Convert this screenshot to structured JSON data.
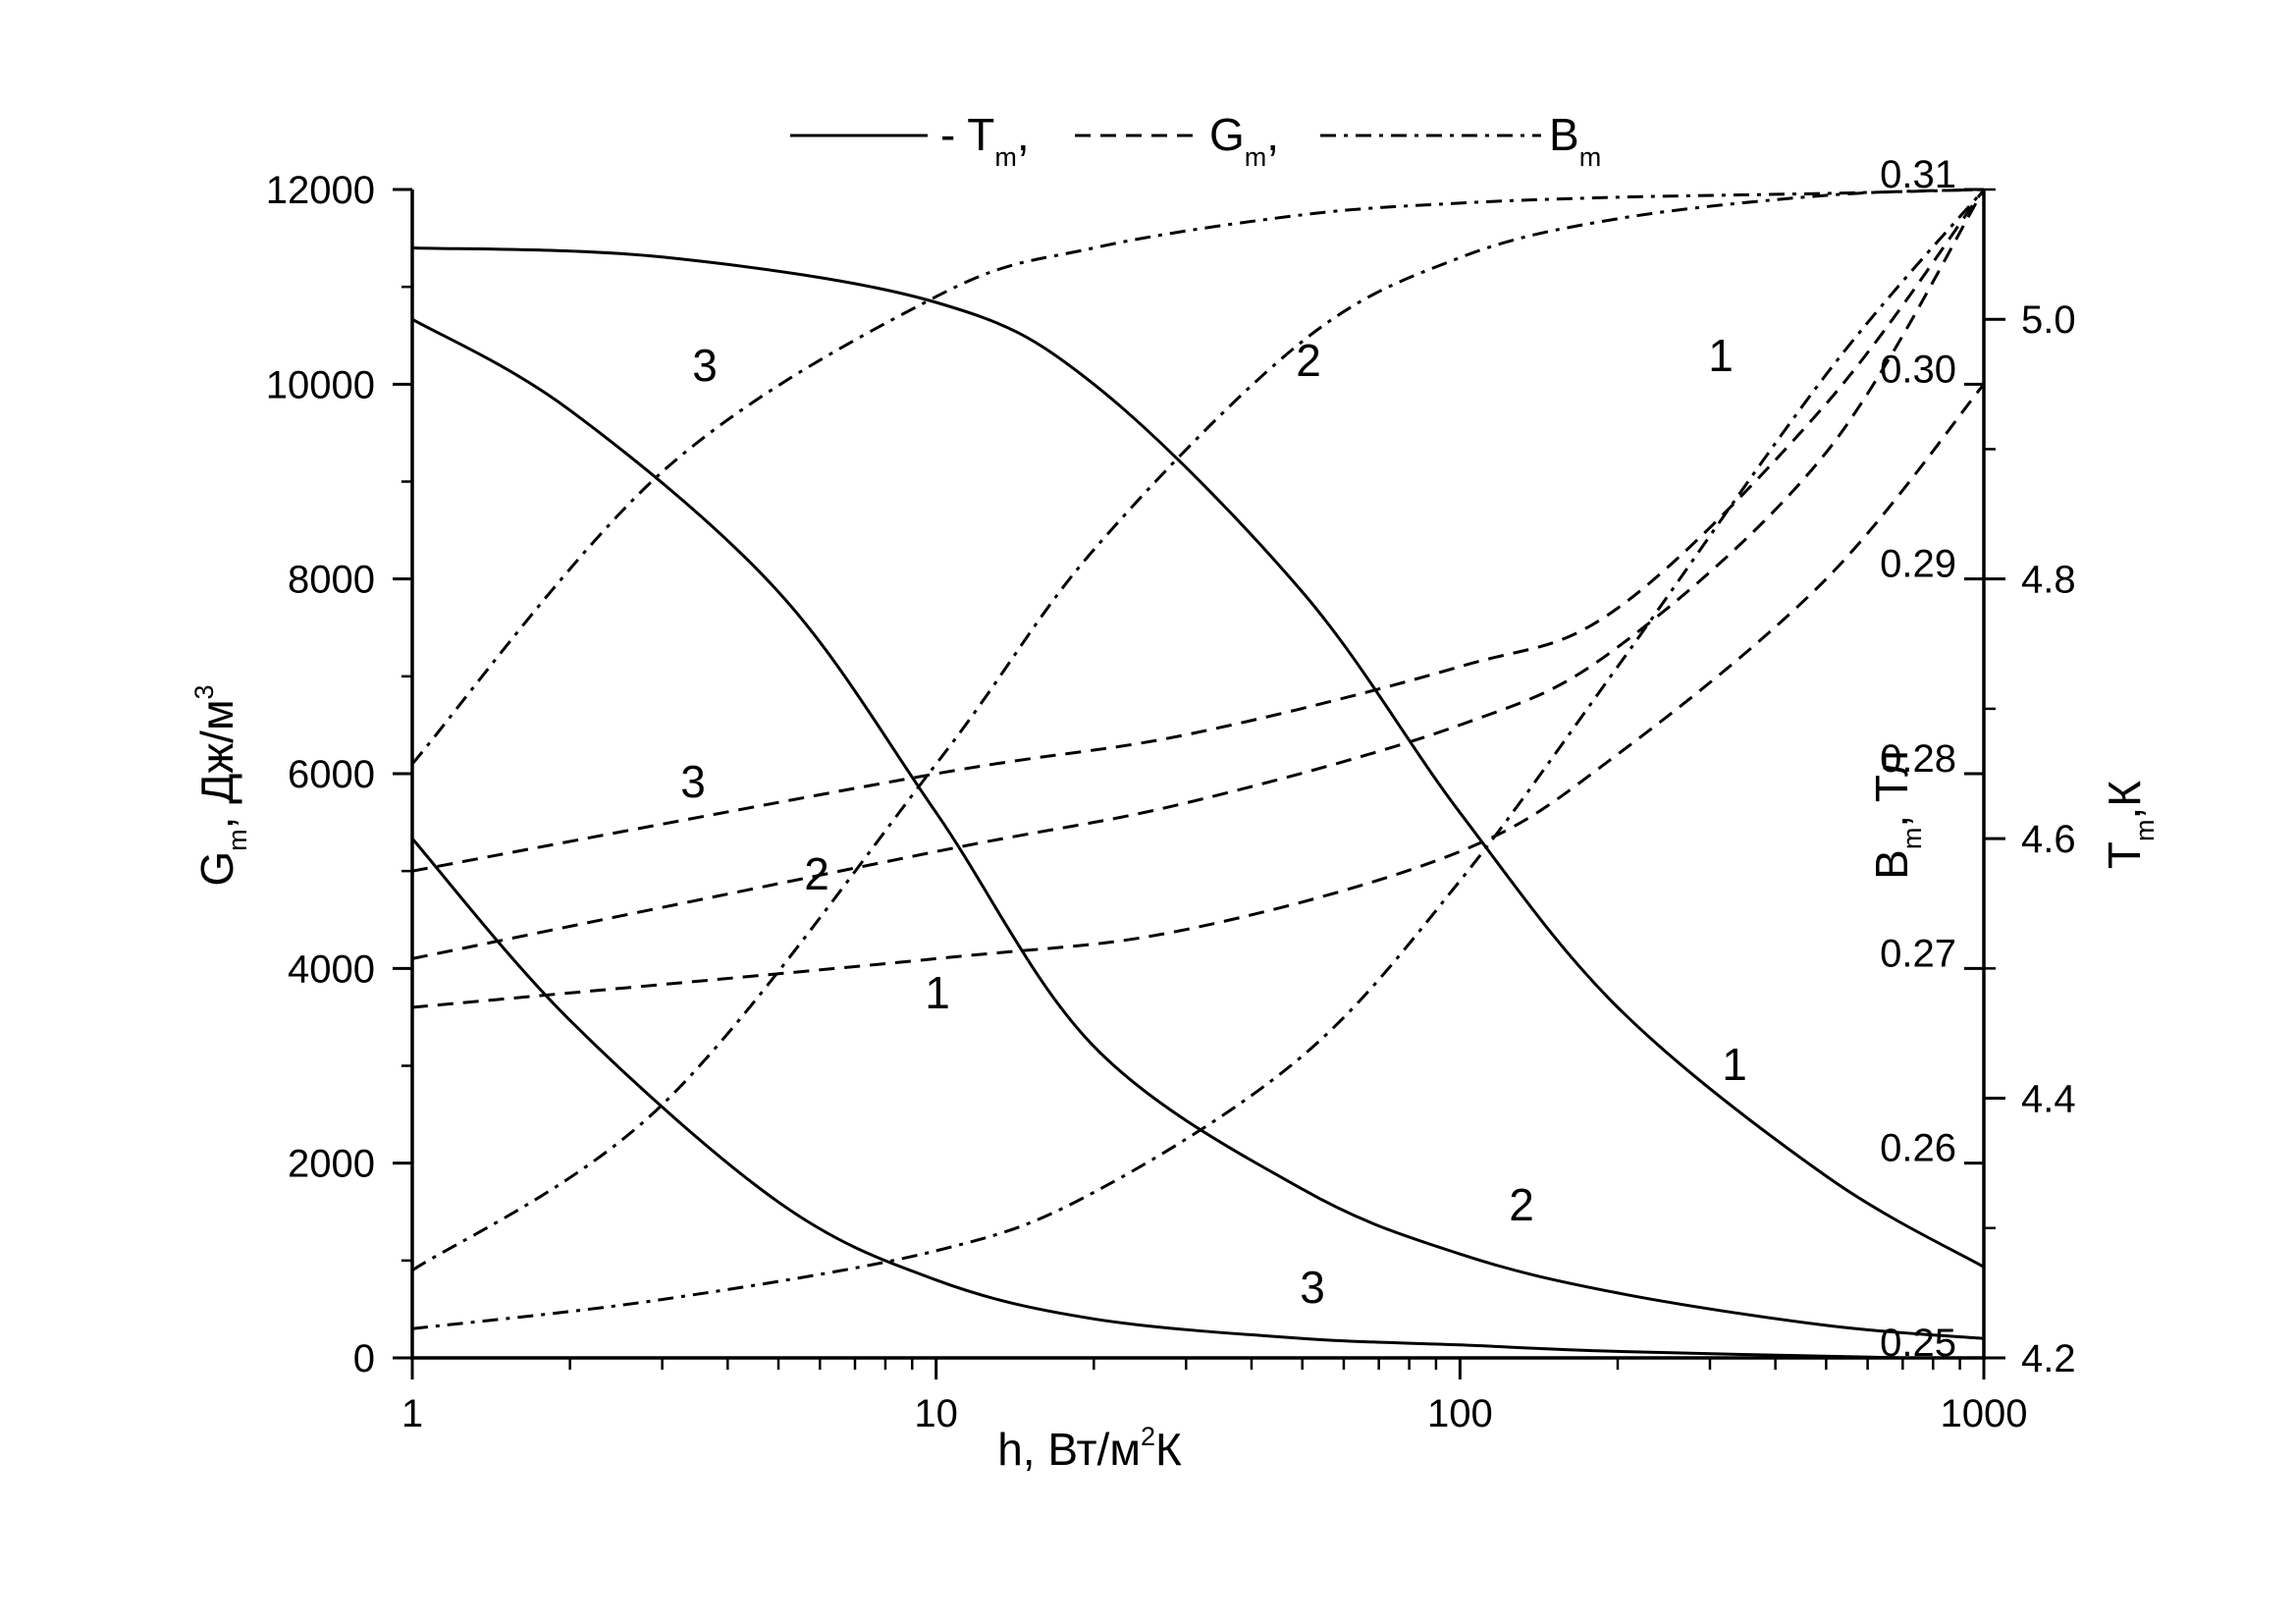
{
  "legend": {
    "items": [
      {
        "series": "Tm",
        "text": "- T",
        "sub": "m",
        "suffix": ",",
        "style": "solid"
      },
      {
        "series": "Gm",
        "text": "G",
        "sub": "m",
        "suffix": ",",
        "style": "dash"
      },
      {
        "series": "Bm",
        "text": "B",
        "sub": "m",
        "suffix": "",
        "style": "dashdot"
      }
    ]
  },
  "axes": {
    "x": {
      "title_main": "h, Вт/м",
      "title_sup": "2",
      "title_end": "К",
      "scale": "log",
      "range": [
        1,
        1000
      ],
      "ticks": [
        "1",
        "10",
        "100",
        "1000"
      ]
    },
    "y_left": {
      "title_main": "G",
      "title_sub": "m",
      "title_end": ", Дж/м",
      "title_sup": "3",
      "range": [
        0,
        12000
      ],
      "ticks": [
        "0",
        "2000",
        "4000",
        "6000",
        "8000",
        "10000",
        "12000"
      ]
    },
    "y_right_B": {
      "title_main": "B",
      "title_sub": "m",
      "title_end": ", Тл",
      "range": [
        0.25,
        0.31
      ],
      "ticks": [
        "0.25",
        "0.26",
        "0.27",
        "0.28",
        "0.29",
        "0.30",
        "0.31"
      ]
    },
    "y_right_T": {
      "title_main": "T",
      "title_sub": "m",
      "title_end": ",К",
      "range": [
        4.2,
        5.1
      ],
      "ticks": [
        "4.2",
        "4.4",
        "4.6",
        "4.8",
        "5.0"
      ]
    }
  },
  "chart_data": {
    "type": "line",
    "x_scale": "log",
    "xlim": [
      1,
      1000
    ],
    "grid": false,
    "legend_position": "top",
    "series": [
      {
        "name": "Tm",
        "label": "1",
        "axis": "T",
        "x": [
          1,
          3,
          10,
          20,
          50,
          100,
          200,
          500,
          1000
        ],
        "y": [
          5.055,
          5.048,
          5.013,
          4.95,
          4.79,
          4.62,
          4.47,
          4.34,
          4.27
        ]
      },
      {
        "name": "Tm",
        "label": "2",
        "axis": "T",
        "x": [
          1,
          2,
          5,
          10,
          20,
          50,
          100,
          200,
          500,
          1000
        ],
        "y": [
          5.0,
          4.93,
          4.79,
          4.62,
          4.44,
          4.33,
          4.28,
          4.25,
          4.225,
          4.215
        ]
      },
      {
        "name": "Tm",
        "label": "3",
        "axis": "T",
        "x": [
          1,
          2,
          5,
          10,
          20,
          50,
          100,
          200,
          700
        ],
        "y": [
          4.6,
          4.46,
          4.32,
          4.26,
          4.23,
          4.215,
          4.21,
          4.205,
          4.2
        ]
      },
      {
        "name": "Gm",
        "label": "1",
        "axis": "G",
        "x": [
          1,
          10,
          30,
          100,
          200,
          500,
          1000
        ],
        "y": [
          3600,
          4100,
          4400,
          5200,
          6200,
          8000,
          10000
        ]
      },
      {
        "name": "Gm",
        "label": "2",
        "axis": "G",
        "x": [
          1,
          10,
          30,
          100,
          200,
          500,
          1000
        ],
        "y": [
          4100,
          5200,
          5700,
          6500,
          7300,
          9300,
          12000
        ]
      },
      {
        "name": "Gm",
        "label": "3",
        "axis": "G",
        "x": [
          1,
          10,
          30,
          100,
          200,
          500,
          1000
        ],
        "y": [
          5000,
          6000,
          6400,
          7100,
          7700,
          9800,
          12000
        ]
      },
      {
        "name": "Bm",
        "label": "1",
        "axis": "B",
        "x": [
          1,
          3,
          10,
          20,
          50,
          100,
          200,
          500,
          1000
        ],
        "y": [
          0.2515,
          0.253,
          0.2555,
          0.2585,
          0.2655,
          0.2745,
          0.2855,
          0.3005,
          0.31
        ]
      },
      {
        "name": "Bm",
        "label": "2",
        "axis": "B",
        "x": [
          1,
          3,
          10,
          20,
          50,
          100,
          200,
          500,
          1000
        ],
        "y": [
          0.2545,
          0.263,
          0.2805,
          0.2915,
          0.3022,
          0.3065,
          0.3085,
          0.3097,
          0.31
        ]
      },
      {
        "name": "Bm",
        "label": "3",
        "axis": "B",
        "x": [
          1,
          3,
          10,
          20,
          50,
          100,
          200,
          500,
          1000
        ],
        "y": [
          0.2805,
          0.2955,
          0.3045,
          0.307,
          0.3087,
          0.3093,
          0.3096,
          0.3098,
          0.31
        ]
      }
    ],
    "curve_labels": [
      {
        "text": "3",
        "series": "Bm"
      },
      {
        "text": "2",
        "series": "Bm"
      },
      {
        "text": "1",
        "series": "Bm"
      },
      {
        "text": "3",
        "series": "Gm"
      },
      {
        "text": "2",
        "series": "Gm"
      },
      {
        "text": "1",
        "series": "Gm"
      },
      {
        "text": "1",
        "series": "Tm"
      },
      {
        "text": "2",
        "series": "Tm"
      },
      {
        "text": "3",
        "series": "Tm"
      }
    ]
  }
}
